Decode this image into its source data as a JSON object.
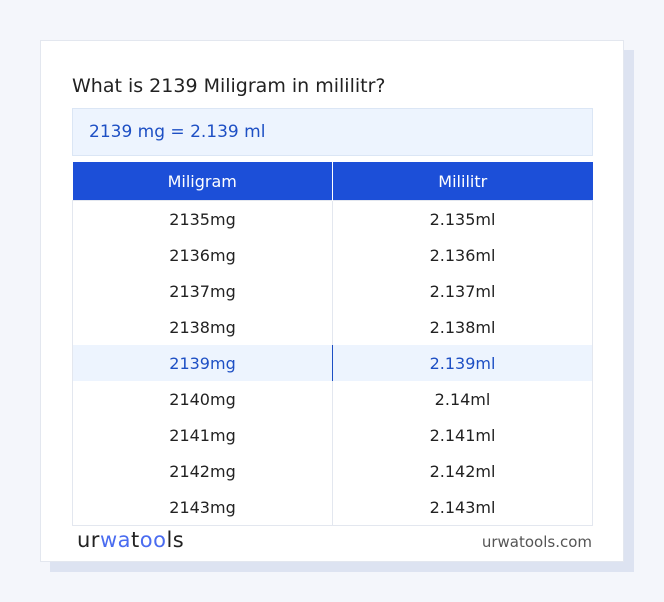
{
  "title": "What is 2139 Miligram in mililitr?",
  "result": "2139 mg = 2.139 ml",
  "table": {
    "headers": [
      "Miligram",
      "Mililitr"
    ],
    "rows": [
      [
        "2135mg",
        "2.135ml"
      ],
      [
        "2136mg",
        "2.136ml"
      ],
      [
        "2137mg",
        "2.137ml"
      ],
      [
        "2138mg",
        "2.138ml"
      ],
      [
        "2139mg",
        "2.139ml"
      ],
      [
        "2140mg",
        "2.14ml"
      ],
      [
        "2141mg",
        "2.141ml"
      ],
      [
        "2142mg",
        "2.142ml"
      ],
      [
        "2143mg",
        "2.143ml"
      ]
    ],
    "highlighted_row": 4
  },
  "footer": {
    "logo": "urwatools",
    "logo_parts": [
      "ur",
      "wa",
      "t",
      "oo",
      "ls"
    ],
    "site": "urwatools.com"
  },
  "colors": {
    "accent": "#1c4fd8",
    "highlight_bg": "#edf4fe",
    "highlight_text": "#1d4fc4"
  }
}
